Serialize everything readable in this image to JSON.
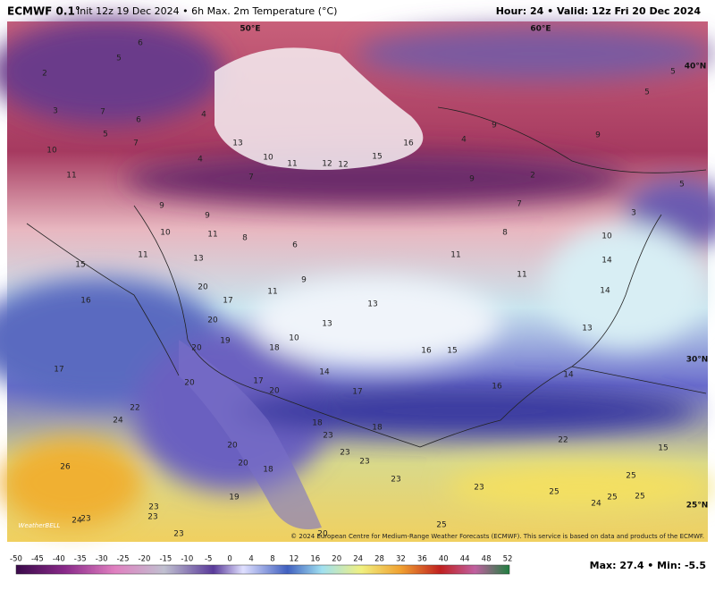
{
  "header": {
    "model": "ECMWF 0.1°",
    "description": "Init 12z 19 Dec 2024 • 6h Max. 2m Temperature (°C)",
    "hour": "Hour: 24 • Valid: 12z Fri 20 Dec 2024"
  },
  "map": {
    "grid_labels": [
      "50°E",
      "60°E",
      "40°N",
      "30°N",
      "25°N"
    ],
    "point_labels": [
      6,
      5,
      2,
      3,
      7,
      6,
      4,
      5,
      7,
      10,
      13,
      10,
      11,
      12,
      12,
      15,
      16,
      4,
      9,
      9,
      5,
      5,
      5,
      3,
      4,
      11,
      7,
      9,
      2,
      7,
      9,
      9,
      10,
      11,
      8,
      6,
      8,
      10,
      11,
      13,
      15,
      11,
      11,
      14,
      9,
      11,
      20,
      14,
      16,
      17,
      13,
      20,
      13,
      13,
      19,
      20,
      18,
      10,
      16,
      15,
      17,
      14,
      14,
      17,
      20,
      20,
      17,
      16,
      22,
      24,
      18,
      18,
      23,
      22,
      15,
      20,
      23,
      23,
      20,
      18,
      26,
      25,
      23,
      23,
      25,
      19,
      25,
      25,
      23,
      24,
      23,
      24,
      23,
      25,
      23,
      20
    ],
    "logo": "WeatherBELL",
    "credit": "© 2024 European Centre for Medium-Range Weather Forecasts (ECMWF). This service is based on data and products of the ECMWF."
  },
  "colorbar": {
    "ticks": [
      -50,
      -45,
      -40,
      -35,
      -30,
      -25,
      -20,
      -15,
      -10,
      -5,
      0,
      4,
      8,
      12,
      16,
      20,
      24,
      28,
      32,
      36,
      40,
      44,
      48,
      52
    ]
  },
  "footer": {
    "stats": "Max: 27.4 • Min: -5.5"
  }
}
